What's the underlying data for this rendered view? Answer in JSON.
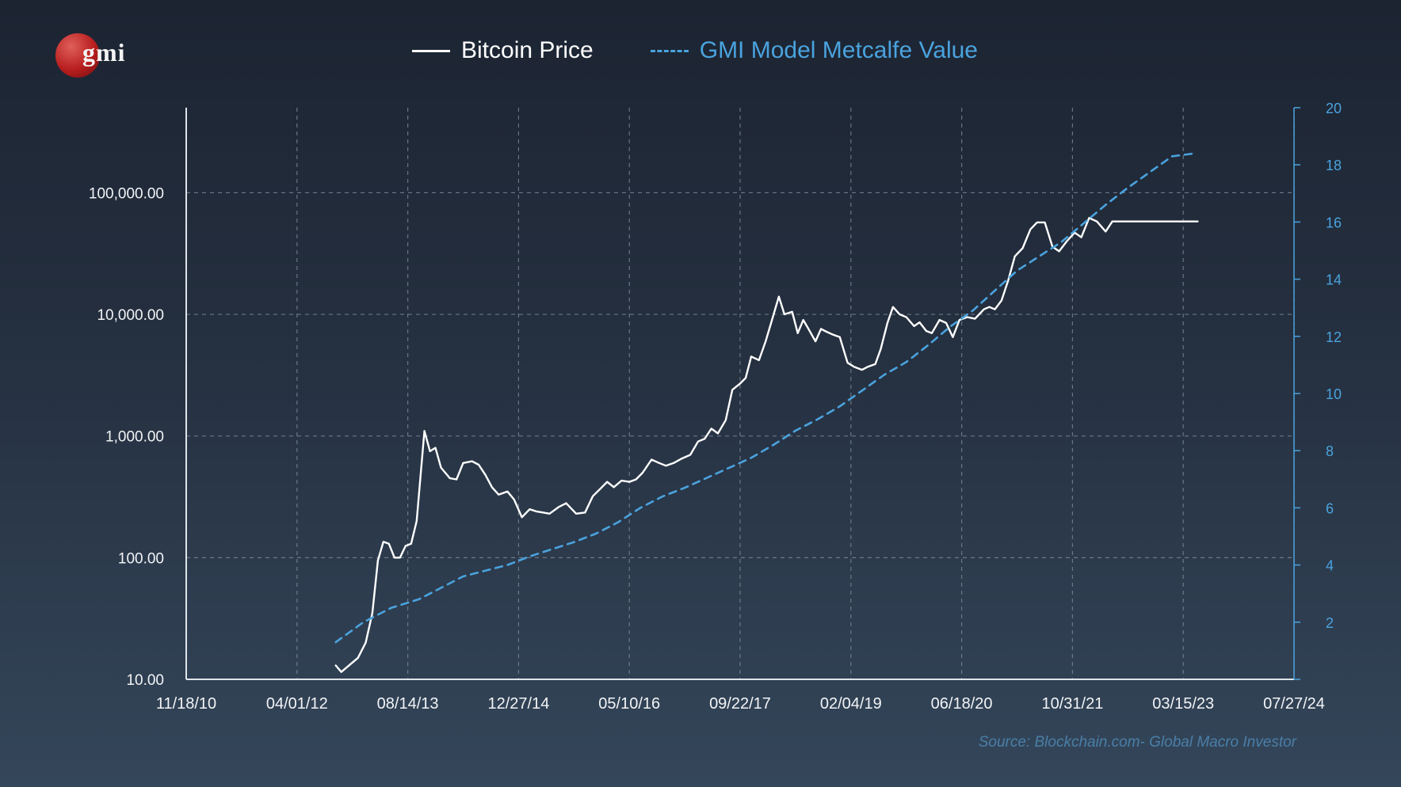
{
  "logo": {
    "text": "gmi"
  },
  "source": "Source: Blockchain.com- Global Macro Investor",
  "chart_data": {
    "type": "line",
    "title": "",
    "legend": "top",
    "x_axis": {
      "ticks": [
        "11/18/10",
        "04/01/12",
        "08/14/13",
        "12/27/14",
        "05/10/16",
        "09/22/17",
        "02/04/19",
        "06/18/20",
        "10/31/21",
        "03/15/23",
        "07/27/24"
      ],
      "range": [
        0,
        10
      ]
    },
    "y_left": {
      "scale": "log",
      "range": [
        10,
        500000
      ],
      "ticks": [
        10,
        100,
        1000,
        10000,
        100000
      ],
      "tick_labels": [
        "10.00",
        "100.00",
        "1,000.00",
        "10,000.00",
        "100,000.00"
      ]
    },
    "y_right": {
      "scale": "linear",
      "range": [
        0,
        20
      ],
      "ticks": [
        2,
        4,
        6,
        8,
        10,
        12,
        14,
        16,
        18,
        20
      ],
      "tick_labels": [
        "2",
        "4",
        "6",
        "8",
        "10",
        "12",
        "14",
        "16",
        "18",
        "20"
      ]
    },
    "series": [
      {
        "name": "Bitcoin Price",
        "style": "solid",
        "color": "#ffffff",
        "axis": "left",
        "x": [
          1.35,
          1.4,
          1.55,
          1.62,
          1.68,
          1.73,
          1.78,
          1.83,
          1.88,
          1.93,
          1.98,
          2.03,
          2.08,
          2.15,
          2.2,
          2.25,
          2.3,
          2.38,
          2.44,
          2.5,
          2.58,
          2.64,
          2.7,
          2.76,
          2.82,
          2.9,
          2.96,
          3.03,
          3.1,
          3.16,
          3.22,
          3.28,
          3.36,
          3.43,
          3.52,
          3.6,
          3.67,
          3.74,
          3.8,
          3.86,
          3.93,
          4.0,
          4.06,
          4.12,
          4.2,
          4.27,
          4.33,
          4.4,
          4.47,
          4.55,
          4.62,
          4.68,
          4.74,
          4.8,
          4.87,
          4.93,
          5.0,
          5.05,
          5.1,
          5.17,
          5.23,
          5.28,
          5.35,
          5.4,
          5.47,
          5.52,
          5.57,
          5.62,
          5.68,
          5.73,
          5.78,
          5.84,
          5.9,
          5.97,
          6.03,
          6.1,
          6.15,
          6.22,
          6.27,
          6.33,
          6.38,
          6.44,
          6.5,
          6.57,
          6.62,
          6.68,
          6.73,
          6.8,
          6.86,
          6.92,
          6.98,
          7.05,
          7.12,
          7.2,
          7.25,
          7.3,
          7.36,
          7.42,
          7.48,
          7.55,
          7.62,
          7.68,
          7.75,
          7.82,
          7.88,
          7.95,
          8.02,
          8.08,
          8.15,
          8.22,
          8.3,
          8.36,
          8.42,
          8.48,
          8.55,
          8.62,
          8.68,
          8.74,
          8.82,
          8.88,
          8.95,
          9.02,
          9.07,
          9.13
        ],
        "y": [
          13,
          11.5,
          15,
          20,
          35,
          95,
          135,
          130,
          100,
          100,
          125,
          130,
          200,
          1100,
          750,
          800,
          550,
          450,
          440,
          600,
          620,
          580,
          480,
          380,
          330,
          350,
          300,
          215,
          250,
          240,
          235,
          230,
          260,
          280,
          230,
          235,
          320,
          370,
          420,
          380,
          430,
          420,
          440,
          500,
          640,
          600,
          570,
          600,
          650,
          700,
          900,
          950,
          1150,
          1050,
          1350,
          2400,
          2700,
          3000,
          4500,
          4200,
          6000,
          8500,
          14000,
          10000,
          10500,
          7000,
          9000,
          7500,
          6000,
          7600,
          7200,
          6800,
          6500,
          4000,
          3700,
          3500,
          3700,
          3900,
          5200,
          8500,
          11500,
          10000,
          9500,
          8000,
          8600,
          7300,
          7000,
          9000,
          8500,
          6500,
          9000,
          9500,
          9200,
          11000,
          11500,
          11000,
          13000,
          19000,
          30000,
          35000,
          50000,
          57000,
          57000,
          36000,
          33000,
          40000,
          47000,
          43000,
          62000,
          58000,
          48000,
          58000,
          58000,
          58000,
          58000,
          58000,
          58000,
          58000,
          58000,
          58000,
          58000,
          58000,
          58000,
          58000
        ]
      },
      {
        "name": "GMI Model Metcalfe Value",
        "style": "dashed",
        "color": "#4aa3de",
        "axis": "right",
        "x": [
          1.35,
          1.6,
          1.85,
          2.1,
          2.3,
          2.5,
          2.7,
          2.9,
          3.1,
          3.3,
          3.5,
          3.7,
          3.9,
          4.1,
          4.3,
          4.5,
          4.7,
          4.9,
          5.1,
          5.3,
          5.5,
          5.7,
          5.9,
          6.1,
          6.3,
          6.5,
          6.7,
          6.9,
          7.1,
          7.3,
          7.5,
          7.7,
          7.9,
          8.1,
          8.3,
          8.5,
          8.7,
          8.9,
          9.1
        ],
        "y": [
          1.3,
          2.0,
          2.5,
          2.8,
          3.2,
          3.6,
          3.8,
          4.0,
          4.3,
          4.55,
          4.8,
          5.1,
          5.5,
          6.0,
          6.4,
          6.7,
          7.05,
          7.4,
          7.75,
          8.2,
          8.7,
          9.1,
          9.55,
          10.1,
          10.65,
          11.1,
          11.7,
          12.35,
          12.9,
          13.6,
          14.3,
          14.8,
          15.3,
          15.95,
          16.6,
          17.2,
          17.75,
          18.3,
          18.4
        ]
      }
    ]
  }
}
